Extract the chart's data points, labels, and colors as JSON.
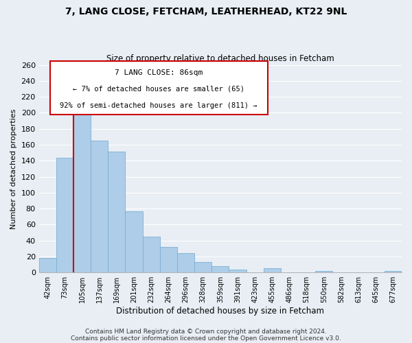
{
  "title": "7, LANG CLOSE, FETCHAM, LEATHERHEAD, KT22 9NL",
  "subtitle": "Size of property relative to detached houses in Fetcham",
  "xlabel": "Distribution of detached houses by size in Fetcham",
  "ylabel": "Number of detached properties",
  "footer_line1": "Contains HM Land Registry data © Crown copyright and database right 2024.",
  "footer_line2": "Contains public sector information licensed under the Open Government Licence v3.0.",
  "bin_labels": [
    "42sqm",
    "73sqm",
    "105sqm",
    "137sqm",
    "169sqm",
    "201sqm",
    "232sqm",
    "264sqm",
    "296sqm",
    "328sqm",
    "359sqm",
    "391sqm",
    "423sqm",
    "455sqm",
    "486sqm",
    "518sqm",
    "550sqm",
    "582sqm",
    "613sqm",
    "645sqm",
    "677sqm"
  ],
  "bar_heights": [
    18,
    144,
    204,
    165,
    151,
    77,
    45,
    32,
    24,
    13,
    8,
    4,
    0,
    5,
    0,
    0,
    2,
    0,
    0,
    0,
    2
  ],
  "bar_color": "#aecde8",
  "bar_edge_color": "#7aafd4",
  "vline_color": "#cc0000",
  "annotation_title": "7 LANG CLOSE: 86sqm",
  "annotation_line1": "← 7% of detached houses are smaller (65)",
  "annotation_line2": "92% of semi-detached houses are larger (811) →",
  "annotation_box_color": "#ffffff",
  "annotation_box_edge": "#cc0000",
  "ylim": [
    0,
    260
  ],
  "yticks": [
    0,
    20,
    40,
    60,
    80,
    100,
    120,
    140,
    160,
    180,
    200,
    220,
    240,
    260
  ],
  "background_color": "#e8eef4",
  "plot_background": "#e8eef4",
  "grid_color": "#ffffff",
  "title_fontsize": 10,
  "subtitle_fontsize": 8.5
}
